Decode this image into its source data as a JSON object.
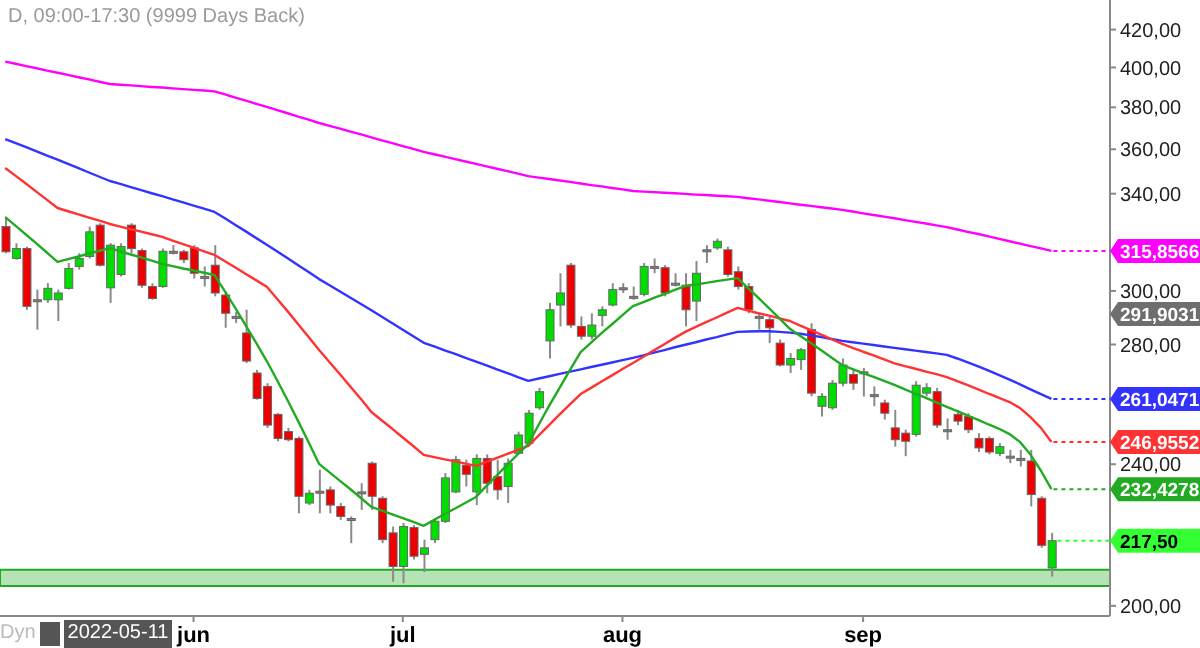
{
  "chart_data": {
    "type": "candlestick",
    "title": "D, 09:00-17:30 (9999 Days Back)",
    "categories": [
      null,
      null,
      null,
      null,
      null,
      null,
      null,
      null,
      null,
      null,
      null,
      null,
      null,
      null,
      null,
      null,
      null,
      null,
      "jun",
      null,
      null,
      null,
      null,
      null,
      null,
      null,
      null,
      null,
      null,
      null,
      null,
      null,
      null,
      null,
      null,
      null,
      null,
      null,
      "jul",
      null,
      null,
      null,
      null,
      null,
      null,
      null,
      null,
      null,
      null,
      null,
      null,
      null,
      null,
      null,
      null,
      null,
      null,
      null,
      null,
      "aug",
      null,
      null,
      null,
      null,
      null,
      null,
      null,
      null,
      null,
      null,
      null,
      null,
      null,
      null,
      null,
      null,
      null,
      null,
      null,
      null,
      null,
      null,
      "sep",
      null,
      null,
      null,
      null,
      null,
      null,
      null,
      null,
      null,
      null,
      null,
      null,
      null,
      null,
      null,
      null,
      null,
      null
    ],
    "ohlc": [
      [
        325.9,
        330.1,
        314.9,
        315.5
      ],
      [
        312.8,
        319.0,
        312.3,
        316.8
      ],
      [
        316.8,
        317.6,
        292.8,
        294.1
      ],
      [
        296.6,
        300.5,
        285.4,
        296.6
      ],
      [
        296.6,
        303.0,
        295.4,
        301.0
      ],
      [
        296.6,
        300.5,
        288.6,
        299.2
      ],
      [
        301.0,
        311.0,
        300.5,
        308.8
      ],
      [
        309.6,
        314.9,
        308.3,
        312.8
      ],
      [
        313.6,
        325.9,
        312.8,
        323.7
      ],
      [
        326.5,
        327.3,
        309.6,
        310.1
      ],
      [
        301.2,
        319.0,
        295.4,
        318.2
      ],
      [
        306.4,
        319.0,
        305.6,
        317.6
      ],
      [
        326.5,
        327.3,
        314.9,
        316.8
      ],
      [
        316.0,
        316.8,
        301.2,
        302.2
      ],
      [
        301.7,
        303.0,
        296.6,
        297.1
      ],
      [
        301.7,
        316.8,
        301.2,
        315.7
      ],
      [
        315.7,
        318.2,
        314.4,
        315.7
      ],
      [
        315.5,
        316.3,
        311.0,
        312.3
      ],
      [
        317.1,
        318.2,
        304.8,
        306.9
      ],
      [
        305.6,
        309.6,
        301.7,
        305.6
      ],
      [
        310.1,
        318.2,
        297.9,
        299.2
      ],
      [
        298.4,
        299.7,
        286.1,
        291.5
      ],
      [
        290.3,
        292.0,
        287.8,
        290.3
      ],
      [
        284.2,
        292.8,
        273.4,
        274.1
      ],
      [
        269.9,
        271.0,
        260.8,
        261.2
      ],
      [
        265.3,
        266.4,
        251.5,
        252.4
      ],
      [
        255.9,
        256.3,
        247.2,
        248.1
      ],
      [
        250.3,
        251.5,
        247.2,
        247.7
      ],
      [
        248.1,
        248.7,
        225.3,
        230.3
      ],
      [
        228.3,
        232.2,
        227.7,
        231.2
      ],
      [
        231.8,
        238.3,
        225.3,
        231.8
      ],
      [
        232.2,
        233.2,
        225.3,
        227.7
      ],
      [
        227.3,
        228.3,
        223.4,
        224.4
      ],
      [
        223.8,
        224.4,
        216.8,
        223.8
      ],
      [
        231.6,
        234.2,
        226.3,
        231.6
      ],
      [
        240.3,
        240.8,
        226.3,
        230.3
      ],
      [
        229.7,
        230.3,
        216.8,
        217.8
      ],
      [
        219.7,
        221.5,
        206.3,
        210.4
      ],
      [
        210.4,
        222.5,
        205.9,
        221.5
      ],
      [
        221.2,
        221.9,
        212.3,
        213.2
      ],
      [
        213.7,
        217.8,
        208.9,
        215.5
      ],
      [
        217.8,
        223.8,
        216.8,
        223.0
      ],
      [
        223.0,
        237.3,
        222.5,
        235.8
      ],
      [
        231.6,
        242.5,
        231.2,
        241.4
      ],
      [
        239.7,
        241.4,
        233.2,
        236.9
      ],
      [
        231.6,
        243.1,
        227.7,
        241.8
      ],
      [
        241.8,
        243.1,
        231.2,
        234.2
      ],
      [
        236.2,
        241.4,
        229.3,
        232.2
      ],
      [
        233.2,
        241.8,
        228.3,
        240.3
      ],
      [
        243.4,
        250.3,
        243.1,
        249.2
      ],
      [
        246.6,
        257.4,
        245.9,
        256.3
      ],
      [
        258.1,
        264.8,
        257.4,
        263.5
      ],
      [
        281.3,
        295.4,
        275.0,
        292.8
      ],
      [
        294.6,
        306.9,
        286.6,
        299.2
      ],
      [
        310.1,
        311.0,
        286.1,
        287.1
      ],
      [
        286.6,
        290.3,
        281.8,
        283.0
      ],
      [
        283.0,
        291.5,
        281.8,
        287.1
      ],
      [
        290.7,
        294.1,
        286.6,
        292.8
      ],
      [
        294.6,
        303.0,
        294.1,
        300.5
      ],
      [
        301.2,
        303.0,
        299.2,
        301.2
      ],
      [
        297.9,
        301.7,
        296.6,
        297.9
      ],
      [
        298.7,
        311.0,
        297.9,
        309.6
      ],
      [
        309.6,
        312.8,
        306.9,
        309.6
      ],
      [
        309.1,
        310.1,
        297.9,
        299.2
      ],
      [
        303.0,
        306.9,
        301.7,
        303.0
      ],
      [
        302.2,
        306.9,
        286.6,
        292.8
      ],
      [
        296.1,
        311.8,
        288.6,
        306.9
      ],
      [
        316.3,
        318.2,
        311.0,
        316.3
      ],
      [
        317.1,
        320.9,
        316.3,
        319.8
      ],
      [
        316.3,
        317.6,
        305.6,
        306.4
      ],
      [
        307.5,
        309.6,
        300.5,
        301.7
      ],
      [
        301.7,
        303.0,
        291.5,
        292.8
      ],
      [
        290.3,
        291.5,
        285.4,
        290.3
      ],
      [
        289.1,
        290.3,
        280.5,
        286.1
      ],
      [
        280.5,
        281.8,
        272.2,
        272.7
      ],
      [
        272.7,
        276.9,
        269.9,
        275.0
      ],
      [
        274.6,
        278.8,
        271.0,
        278.1
      ],
      [
        285.4,
        287.8,
        261.9,
        263.0
      ],
      [
        258.6,
        263.0,
        255.2,
        261.9
      ],
      [
        258.1,
        267.5,
        257.4,
        266.4
      ],
      [
        266.4,
        275.0,
        265.3,
        272.7
      ],
      [
        269.4,
        271.0,
        264.1,
        266.4
      ],
      [
        270.3,
        271.7,
        261.9,
        270.3
      ],
      [
        262.5,
        265.3,
        258.6,
        262.5
      ],
      [
        259.7,
        260.8,
        254.2,
        256.3
      ],
      [
        251.5,
        257.4,
        245.5,
        247.7
      ],
      [
        249.8,
        250.9,
        242.5,
        247.2
      ],
      [
        249.4,
        267.1,
        248.7,
        265.7
      ],
      [
        263.0,
        266.4,
        261.9,
        264.8
      ],
      [
        263.5,
        264.8,
        251.5,
        252.4
      ],
      [
        250.9,
        254.6,
        247.7,
        250.9
      ],
      [
        255.9,
        257.4,
        252.4,
        253.7
      ],
      [
        255.2,
        256.3,
        249.8,
        250.9
      ],
      [
        248.1,
        249.8,
        243.8,
        245.1
      ],
      [
        248.1,
        248.7,
        243.1,
        243.8
      ],
      [
        243.4,
        246.6,
        242.5,
        245.5
      ],
      [
        242.5,
        244.5,
        240.3,
        242.5
      ],
      [
        241.8,
        244.5,
        239.3,
        241.8
      ],
      [
        241.0,
        244.5,
        227.3,
        230.8
      ],
      [
        229.7,
        230.3,
        215.5,
        216.2
      ],
      [
        210.0,
        219.7,
        207.7,
        217.5
      ]
    ],
    "colors": [
      "#ee0000",
      "#00dd00",
      "#ee0000",
      "#808080",
      "#00dd00",
      "#00dd00",
      "#00dd00",
      "#00dd00",
      "#00dd00",
      "#ee0000",
      "#00dd00",
      "#00dd00",
      "#ee0000",
      "#ee0000",
      "#ee0000",
      "#00dd00",
      "#808080",
      "#ee0000",
      "#ee0000",
      "#808080",
      "#ee0000",
      "#ee0000",
      "#808080",
      "#ee0000",
      "#ee0000",
      "#ee0000",
      "#ee0000",
      "#ee0000",
      "#ee0000",
      "#00dd00",
      "#808080",
      "#ee0000",
      "#ee0000",
      "#808080",
      "#808080",
      "#ee0000",
      "#ee0000",
      "#ee0000",
      "#00dd00",
      "#ee0000",
      "#00dd00",
      "#00dd00",
      "#00dd00",
      "#00dd00",
      "#ee0000",
      "#00dd00",
      "#ee0000",
      "#ee0000",
      "#00dd00",
      "#00dd00",
      "#00dd00",
      "#00dd00",
      "#00dd00",
      "#00dd00",
      "#ee0000",
      "#ee0000",
      "#00dd00",
      "#00dd00",
      "#00dd00",
      "#808080",
      "#808080",
      "#00dd00",
      "#808080",
      "#ee0000",
      "#808080",
      "#ee0000",
      "#00dd00",
      "#808080",
      "#00dd00",
      "#ee0000",
      "#ee0000",
      "#ee0000",
      "#808080",
      "#ee0000",
      "#ee0000",
      "#00dd00",
      "#00dd00",
      "#ee0000",
      "#00dd00",
      "#00dd00",
      "#00dd00",
      "#ee0000",
      "#808080",
      "#808080",
      "#ee0000",
      "#ee0000",
      "#ee0000",
      "#00dd00",
      "#00dd00",
      "#ee0000",
      "#808080",
      "#ee0000",
      "#ee0000",
      "#ee0000",
      "#ee0000",
      "#00dd00",
      "#808080",
      "#808080",
      "#ee0000",
      "#ee0000",
      "#00dd00"
    ],
    "value_labels": [
      null,
      null,
      null,
      null,
      null,
      null,
      null,
      null,
      null,
      null,
      null,
      null,
      null,
      null,
      null,
      null,
      null,
      null,
      null,
      null,
      null,
      null,
      null,
      null,
      null,
      null,
      null,
      null,
      null,
      null,
      null,
      null,
      null,
      null,
      null,
      null,
      null,
      null,
      null,
      null,
      null,
      null,
      null,
      null,
      null,
      null,
      null,
      null,
      null,
      null,
      null,
      null,
      null,
      null,
      null,
      null,
      null,
      null,
      null,
      null,
      null,
      null,
      null,
      null,
      null,
      null,
      null,
      null,
      null,
      null,
      null,
      null,
      null,
      null,
      null,
      null,
      null,
      null,
      null,
      null,
      null,
      null,
      null,
      null,
      null,
      null,
      null,
      null,
      null,
      null,
      null,
      null,
      null,
      null,
      null,
      null,
      null,
      null,
      null,
      null,
      "217,50"
    ],
    "series": [
      {
        "type": "line",
        "color": "#ff00ff",
        "values": [
          403.0,
          401.9,
          400.7,
          399.6,
          398.4,
          397.3,
          396.2,
          395.0,
          393.9,
          392.7,
          391.6,
          391.2,
          390.9,
          390.5,
          390.1,
          389.8,
          389.4,
          389.0,
          388.6,
          388.3,
          387.9,
          386.4,
          384.8,
          383.3,
          381.7,
          380.2,
          378.6,
          377.1,
          375.5,
          374.0,
          372.4,
          371.0,
          369.7,
          368.3,
          367.0,
          365.6,
          364.2,
          362.9,
          361.5,
          360.2,
          358.8,
          357.7,
          356.6,
          355.5,
          354.4,
          353.3,
          352.2,
          351.1,
          350.0,
          348.9,
          347.8,
          347.1,
          346.5,
          345.8,
          345.2,
          344.5,
          343.8,
          343.2,
          342.5,
          341.9,
          341.2,
          340.9,
          340.7,
          340.4,
          340.2,
          339.9,
          339.6,
          339.4,
          339.1,
          338.9,
          338.6,
          338.0,
          337.5,
          336.9,
          336.4,
          335.8,
          335.2,
          334.7,
          334.1,
          333.6,
          333.0,
          332.3,
          331.5,
          330.8,
          330.1,
          329.4,
          328.6,
          327.9,
          327.2,
          326.4,
          325.7,
          324.7,
          323.7,
          322.8,
          321.8,
          320.8,
          319.8,
          318.8,
          317.8,
          316.9,
          315.8566
        ],
        "value_labels": [
          null,
          null,
          null,
          null,
          null,
          null,
          null,
          null,
          null,
          null,
          null,
          null,
          null,
          null,
          null,
          null,
          null,
          null,
          null,
          null,
          null,
          null,
          null,
          null,
          null,
          null,
          null,
          null,
          null,
          null,
          null,
          null,
          null,
          null,
          null,
          null,
          null,
          null,
          null,
          null,
          null,
          null,
          null,
          null,
          null,
          null,
          null,
          null,
          null,
          null,
          null,
          null,
          null,
          null,
          null,
          null,
          null,
          null,
          null,
          null,
          null,
          null,
          null,
          null,
          null,
          null,
          null,
          null,
          null,
          null,
          null,
          null,
          null,
          null,
          null,
          null,
          null,
          null,
          null,
          null,
          null,
          null,
          null,
          null,
          null,
          null,
          null,
          null,
          null,
          null,
          null,
          null,
          null,
          null,
          null,
          null,
          null,
          null,
          null,
          null,
          "315,8566"
        ]
      },
      {
        "type": "line",
        "color": "#3333ff",
        "values": [
          364.8,
          362.9,
          361.0,
          359.0,
          357.1,
          355.2,
          353.3,
          351.4,
          349.4,
          347.5,
          345.6,
          344.3,
          342.9,
          341.6,
          340.2,
          338.9,
          337.5,
          336.2,
          334.8,
          333.5,
          332.1,
          329.4,
          326.6,
          323.9,
          321.1,
          318.4,
          315.6,
          312.9,
          310.1,
          307.4,
          304.6,
          302.2,
          299.8,
          297.4,
          295.0,
          292.6,
          290.2,
          287.8,
          285.4,
          283.0,
          280.6,
          279.3,
          277.9,
          276.6,
          275.2,
          273.9,
          272.6,
          271.2,
          269.9,
          268.5,
          267.2,
          268.0,
          268.8,
          269.6,
          270.4,
          271.2,
          272.0,
          272.8,
          273.6,
          274.4,
          275.2,
          276.1,
          277.1,
          278.0,
          279.0,
          279.9,
          280.8,
          281.8,
          282.7,
          283.7,
          284.6,
          284.7,
          284.8,
          284.8,
          284.6,
          284.3,
          283.9,
          283.3,
          282.7,
          282.0,
          281.3,
          280.8,
          280.3,
          279.8,
          279.3,
          278.8,
          278.3,
          277.8,
          277.3,
          276.8,
          276.3,
          275.0,
          273.6,
          272.2,
          270.7,
          269.2,
          267.6,
          266.0,
          264.3,
          262.7,
          261.0471
        ],
        "value_labels": [
          null,
          null,
          null,
          null,
          null,
          null,
          null,
          null,
          null,
          null,
          null,
          null,
          null,
          null,
          null,
          null,
          null,
          null,
          null,
          null,
          null,
          null,
          null,
          null,
          null,
          null,
          null,
          null,
          null,
          null,
          null,
          null,
          null,
          null,
          null,
          null,
          null,
          null,
          null,
          null,
          null,
          null,
          null,
          null,
          null,
          null,
          null,
          null,
          null,
          null,
          null,
          null,
          null,
          null,
          null,
          null,
          null,
          null,
          null,
          null,
          null,
          null,
          null,
          null,
          null,
          null,
          null,
          null,
          null,
          null,
          null,
          null,
          null,
          null,
          null,
          null,
          null,
          null,
          null,
          null,
          null,
          null,
          null,
          null,
          null,
          null,
          null,
          null,
          null,
          null,
          null,
          null,
          null,
          null,
          null,
          null,
          null,
          null,
          null,
          null,
          "261,0471"
        ]
      },
      {
        "type": "line",
        "color": "#ff3333",
        "values": [
          351.4,
          347.9,
          344.4,
          340.8,
          337.3,
          333.8,
          332.4,
          331.1,
          329.7,
          328.4,
          327.0,
          325.9,
          324.8,
          323.8,
          322.7,
          321.6,
          320.1,
          318.6,
          317.2,
          315.7,
          314.2,
          311.7,
          309.2,
          306.6,
          304.1,
          301.6,
          296.9,
          292.2,
          287.4,
          282.7,
          278.0,
          273.7,
          269.5,
          265.2,
          261.0,
          256.7,
          253.9,
          251.2,
          248.4,
          245.7,
          242.9,
          242.2,
          241.5,
          240.9,
          240.2,
          239.5,
          240.7,
          242.0,
          243.2,
          244.5,
          245.7,
          249.1,
          252.5,
          255.9,
          259.3,
          262.7,
          264.8,
          267.0,
          269.1,
          271.3,
          273.4,
          275.6,
          277.9,
          280.1,
          282.4,
          284.6,
          286.4,
          288.2,
          289.9,
          291.7,
          293.5,
          292.5,
          291.5,
          290.6,
          289.6,
          288.6,
          286.9,
          285.2,
          283.6,
          281.9,
          280.2,
          278.8,
          277.4,
          276.1,
          274.7,
          273.3,
          272.3,
          271.4,
          270.4,
          269.5,
          268.5,
          267.1,
          265.7,
          264.3,
          262.8,
          261.4,
          260.0,
          258.0,
          255.0,
          251.5,
          246.9552
        ],
        "value_labels": [
          null,
          null,
          null,
          null,
          null,
          null,
          null,
          null,
          null,
          null,
          null,
          null,
          null,
          null,
          null,
          null,
          null,
          null,
          null,
          null,
          null,
          null,
          null,
          null,
          null,
          null,
          null,
          null,
          null,
          null,
          null,
          null,
          null,
          null,
          null,
          null,
          null,
          null,
          null,
          null,
          null,
          null,
          null,
          null,
          null,
          null,
          null,
          null,
          null,
          null,
          null,
          null,
          null,
          null,
          null,
          null,
          null,
          null,
          null,
          null,
          null,
          null,
          null,
          null,
          null,
          null,
          null,
          null,
          null,
          null,
          null,
          null,
          null,
          null,
          null,
          null,
          null,
          null,
          null,
          null,
          null,
          null,
          null,
          null,
          null,
          null,
          null,
          null,
          null,
          null,
          null,
          null,
          null,
          null,
          null,
          null,
          null,
          null,
          null,
          null,
          "246,9552"
        ]
      },
      {
        "type": "line",
        "color": "#22aa22",
        "values": [
          329.9,
          326.2,
          322.5,
          318.8,
          315.1,
          311.4,
          312.5,
          313.6,
          314.8,
          315.9,
          317.0,
          315.7,
          314.4,
          313.2,
          311.9,
          310.6,
          309.7,
          308.8,
          308.0,
          307.1,
          306.2,
          299.8,
          293.4,
          286.9,
          280.5,
          274.1,
          267.3,
          260.5,
          253.7,
          246.9,
          240.1,
          237.5,
          234.9,
          232.4,
          229.8,
          227.2,
          226.1,
          225.0,
          223.9,
          222.8,
          221.7,
          223.4,
          225.1,
          226.7,
          228.4,
          230.1,
          233.4,
          236.6,
          239.9,
          243.1,
          246.4,
          252.6,
          258.8,
          264.9,
          271.1,
          277.3,
          280.7,
          284.1,
          287.4,
          290.8,
          294.2,
          295.7,
          297.3,
          298.8,
          300.4,
          301.9,
          302.5,
          303.1,
          303.8,
          304.4,
          305.0,
          301.1,
          297.3,
          293.4,
          289.6,
          285.7,
          283.1,
          280.5,
          277.9,
          275.3,
          272.7,
          271.3,
          269.9,
          268.6,
          267.2,
          265.8,
          264.3,
          262.8,
          261.4,
          259.9,
          258.4,
          257.0,
          255.5,
          254.1,
          252.6,
          251.2,
          249.5,
          247.0,
          243.0,
          238.0,
          232.4278
        ],
        "value_labels": [
          null,
          null,
          null,
          null,
          null,
          null,
          null,
          null,
          null,
          null,
          null,
          null,
          null,
          null,
          null,
          null,
          null,
          null,
          null,
          null,
          null,
          null,
          null,
          null,
          null,
          null,
          null,
          null,
          null,
          null,
          null,
          null,
          null,
          null,
          null,
          null,
          null,
          null,
          null,
          null,
          null,
          null,
          null,
          null,
          null,
          null,
          null,
          null,
          null,
          null,
          null,
          null,
          null,
          null,
          null,
          null,
          null,
          null,
          null,
          null,
          null,
          null,
          null,
          null,
          null,
          null,
          null,
          null,
          null,
          null,
          null,
          null,
          null,
          null,
          null,
          null,
          null,
          null,
          null,
          null,
          null,
          null,
          null,
          null,
          null,
          null,
          null,
          null,
          null,
          null,
          null,
          null,
          null,
          null,
          null,
          null,
          null,
          null,
          null,
          null,
          "232,4278"
        ]
      }
    ],
    "log": true,
    "ylim": [
      197.4,
      436.3
    ],
    "yticks": [
      {
        "value": 200,
        "label": "200,00"
      },
      {
        "value": 240,
        "label": "240,00"
      },
      {
        "value": 280,
        "label": "280,00"
      },
      {
        "value": 300,
        "label": "300,00"
      },
      {
        "value": 340,
        "label": "340,00"
      },
      {
        "value": 360,
        "label": "360,00"
      },
      {
        "value": 380,
        "label": "380,00"
      },
      {
        "value": 400,
        "label": "400,00"
      },
      {
        "value": 420,
        "label": "420,00"
      }
    ],
    "bands": [
      {
        "axis": "y",
        "from": 205.2,
        "to": 209.5,
        "color": "#b5e3b5"
      }
    ],
    "annotations": [
      "Dyn",
      "2022-05-11",
      "291,9031"
    ]
  }
}
